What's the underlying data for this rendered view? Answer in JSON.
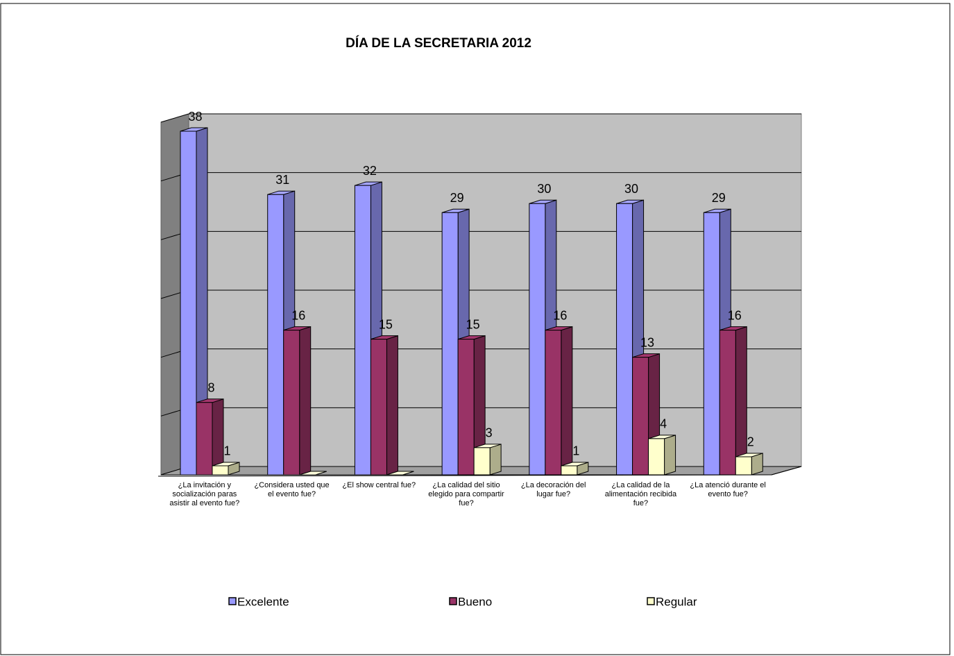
{
  "chart_data": {
    "type": "bar3d",
    "title": "DÍA DE LA SECRETARIA 2012",
    "categories": [
      "¿La invitación y socialización paras asistir al evento fue?",
      "¿Considera usted que el evento fue?",
      "¿El show central fue?",
      "¿La calidad del sitio elegido para compartir fue?",
      "¿La decoración del lugar fue?",
      "¿La calidad de la alimentación recibida fue?",
      "¿La atenció durante el evento fue?"
    ],
    "series": [
      {
        "name": "Excelente",
        "color": "#9999ff",
        "values": [
          38,
          31,
          32,
          29,
          30,
          30,
          29
        ]
      },
      {
        "name": "Bueno",
        "color": "#993366",
        "values": [
          8,
          16,
          15,
          15,
          16,
          13,
          16
        ]
      },
      {
        "name": "Regular",
        "color": "#ffffcc",
        "values": [
          1,
          0,
          0,
          3,
          1,
          4,
          2
        ]
      }
    ],
    "ylim": [
      0,
      39
    ],
    "yticks": [
      0,
      6.5,
      13,
      19.5,
      26,
      32.5,
      39
    ],
    "grid": true,
    "legend": "bottom"
  }
}
